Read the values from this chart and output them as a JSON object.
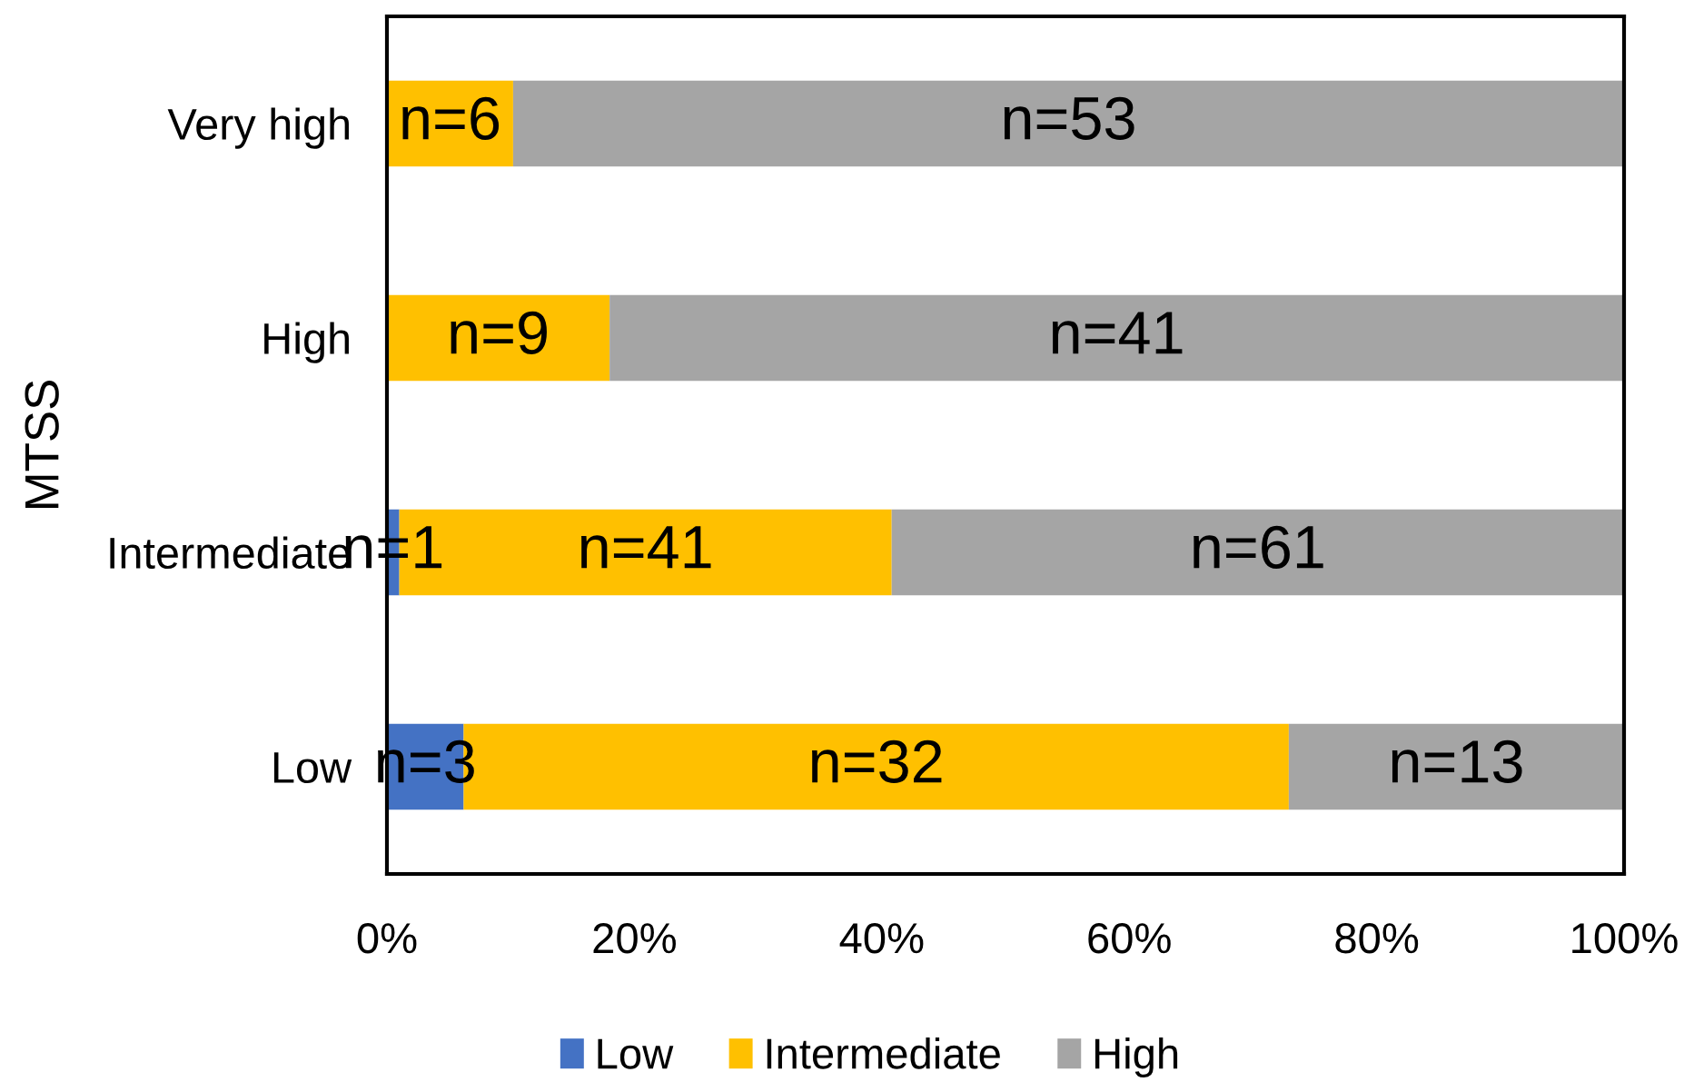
{
  "chart_data": {
    "type": "bar",
    "orientation": "horizontal",
    "stacked": true,
    "ylabel": "MTSS",
    "categories": [
      "Very high",
      "High",
      "Intermediate",
      "Low"
    ],
    "series": [
      {
        "name": "Low",
        "color": "#4472c4",
        "values": [
          0,
          0,
          1.0,
          6.2
        ]
      },
      {
        "name": "Intermediate",
        "color": "#ffc000",
        "values": [
          10.2,
          18.0,
          39.8,
          66.7
        ]
      },
      {
        "name": "High",
        "color": "#a5a5a5",
        "values": [
          89.8,
          82.0,
          59.2,
          27.1
        ]
      }
    ],
    "annotations": [
      "n=6",
      "n=53",
      "n=9",
      "n=41",
      "n=1",
      "n=41",
      "n=61",
      "n=3",
      "n=32",
      "n=13"
    ],
    "xlim": [
      0,
      100
    ],
    "xticks": [
      {
        "value": 0,
        "label": "0%"
      },
      {
        "value": 20,
        "label": "20%"
      },
      {
        "value": 40,
        "label": "40%"
      },
      {
        "value": 60,
        "label": "60%"
      },
      {
        "value": 80,
        "label": "80%"
      },
      {
        "value": 100,
        "label": "100%"
      }
    ],
    "legend": "bottom"
  }
}
